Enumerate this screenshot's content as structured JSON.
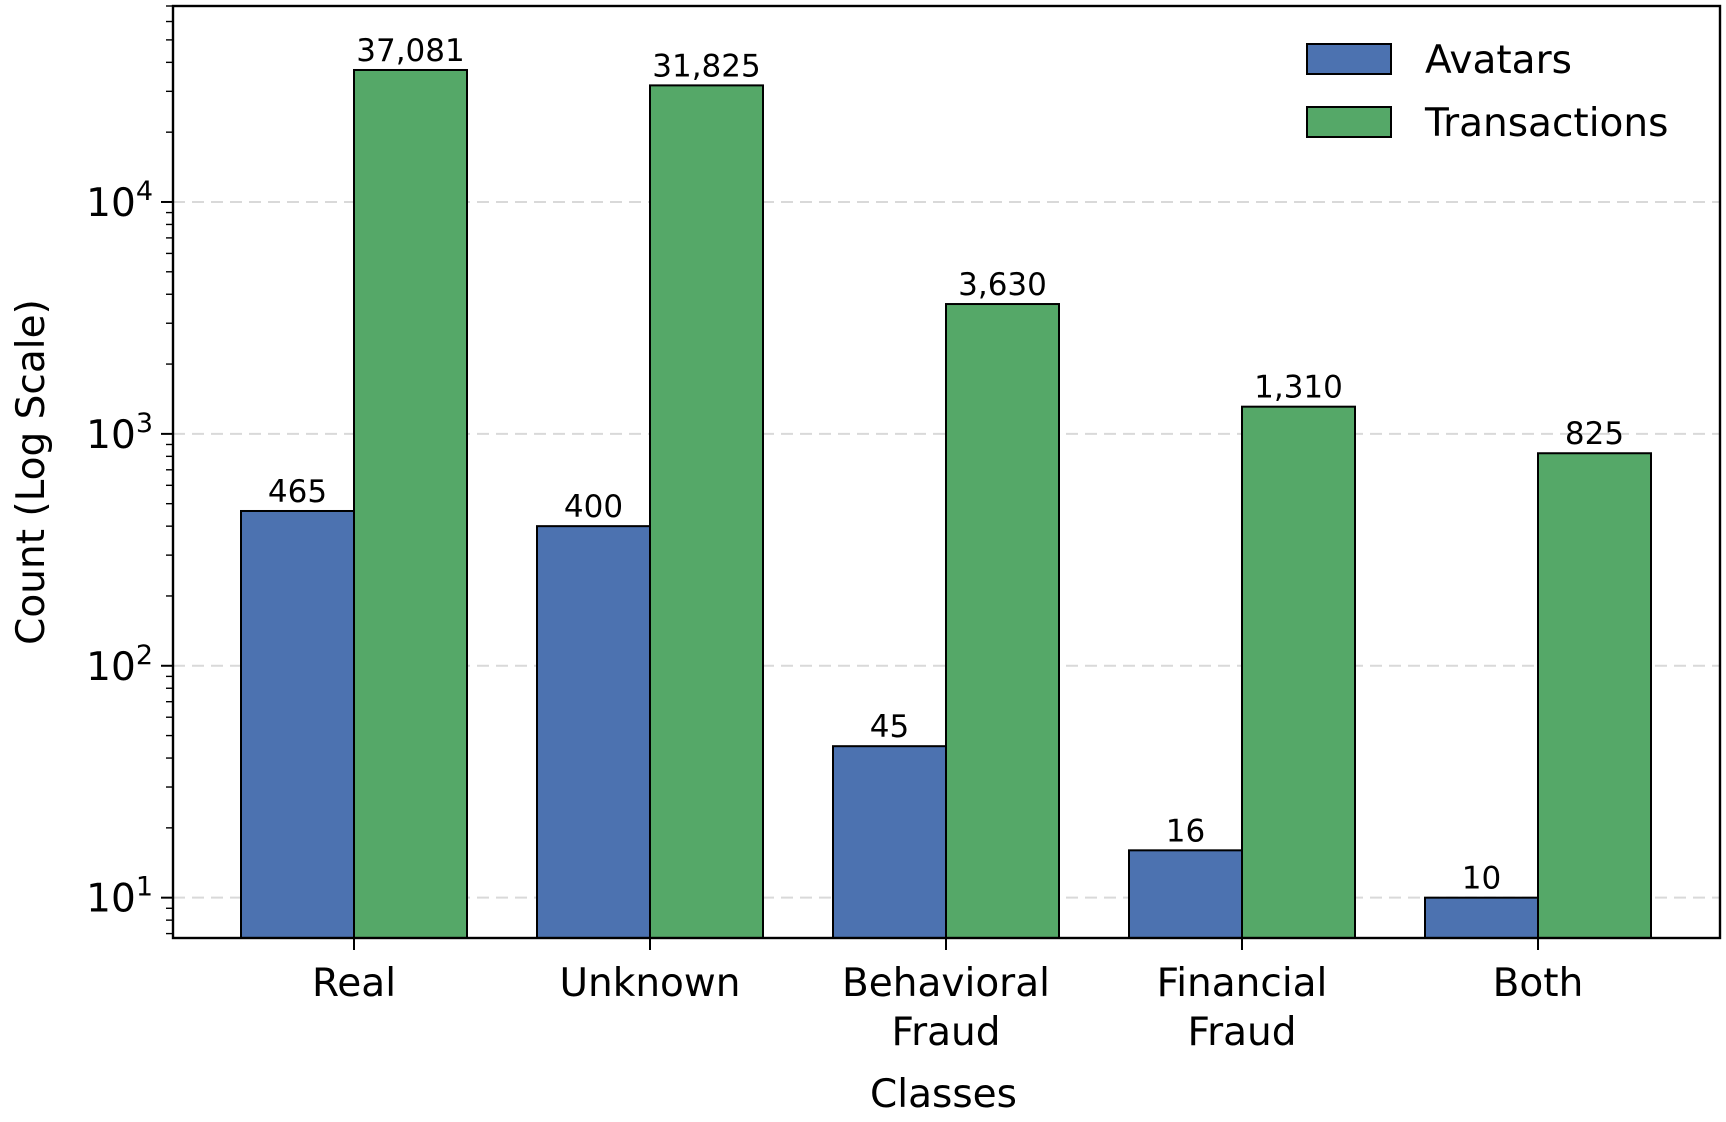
{
  "chart_data": {
    "type": "bar",
    "categories": [
      [
        "Real"
      ],
      [
        "Unknown"
      ],
      [
        "Behavioral",
        "Fraud"
      ],
      [
        "Financial",
        "Fraud"
      ],
      [
        "Both"
      ]
    ],
    "series": [
      {
        "name": "Avatars",
        "color": "#4c72b0",
        "values": [
          465,
          400,
          45,
          16,
          10
        ],
        "value_labels": [
          "465",
          "400",
          "45",
          "16",
          "10"
        ]
      },
      {
        "name": "Transactions",
        "color": "#55a868",
        "values": [
          37081,
          31825,
          3630,
          1310,
          825
        ],
        "value_labels": [
          "37,081",
          "31,825",
          "3,630",
          "1,310",
          "825"
        ]
      }
    ],
    "xlabel": "Classes",
    "ylabel": "Count (Log Scale)",
    "yscale": "log",
    "ylim": [
      6.7,
      70000
    ],
    "yticks": [
      {
        "base": "10",
        "exp": "1",
        "value": 10
      },
      {
        "base": "10",
        "exp": "2",
        "value": 100
      },
      {
        "base": "10",
        "exp": "3",
        "value": 1000
      },
      {
        "base": "10",
        "exp": "4",
        "value": 10000
      }
    ],
    "grid": "horizontal dashed",
    "legend_position": "top-right"
  }
}
